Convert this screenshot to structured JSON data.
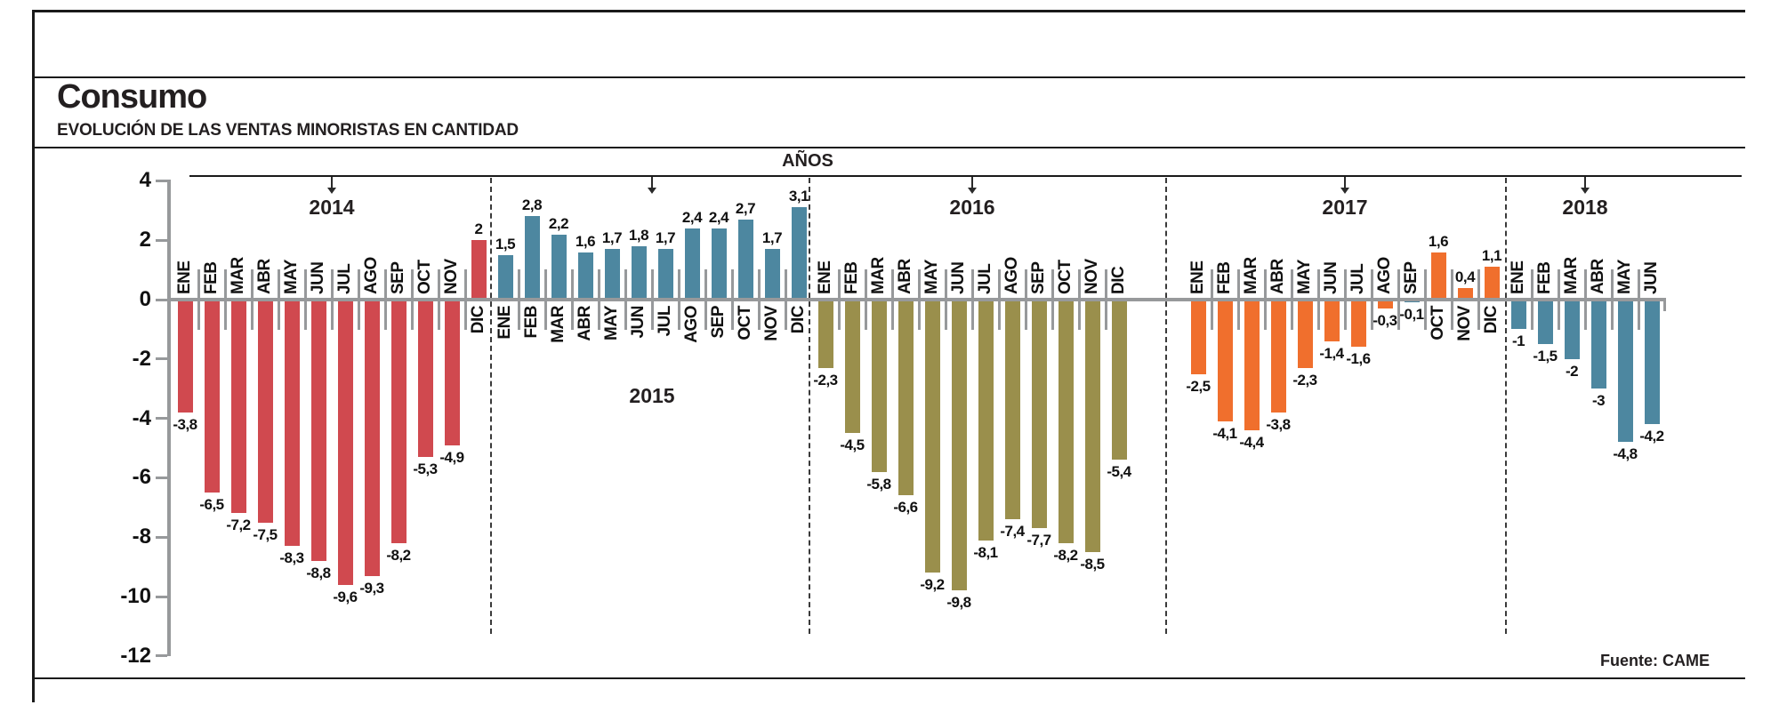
{
  "title": "Consumo",
  "subtitle": "EVOLUCIÓN DE LAS VENTAS MINORISTAS EN CANTIDAD",
  "axis_header": "AÑOS",
  "source": "Fuente: CAME",
  "y_axis": {
    "ticks": [
      4,
      2,
      0,
      -2,
      -4,
      -6,
      -8,
      -10,
      -12
    ],
    "max": 4,
    "min": -12
  },
  "colors": {
    "red_2014": "#d0494f",
    "blue_2015": "#4d87a0",
    "olive_2016": "#9a8f4c",
    "orange_2017": "#f06f2d",
    "blue_2018": "#4d87a0",
    "axis_gray": "#97999b",
    "text": "#231f20"
  },
  "chart_data": {
    "type": "bar",
    "title": "Consumo",
    "subtitle": "Evolución de las ventas minoristas en cantidad",
    "xlabel": "AÑOS",
    "ylabel": "",
    "ylim": [
      -12,
      4
    ],
    "grid": false,
    "legend": "none",
    "years": [
      {
        "label": "2014",
        "color": "#d0494f",
        "year_label_position": "top",
        "months": [
          {
            "m": "ENE",
            "v": -3.8,
            "d": "-3,8"
          },
          {
            "m": "FEB",
            "v": -6.5,
            "d": "-6,5"
          },
          {
            "m": "MAR",
            "v": -7.2,
            "d": "-7,2"
          },
          {
            "m": "ABR",
            "v": -7.5,
            "d": "-7,5"
          },
          {
            "m": "MAY",
            "v": -8.3,
            "d": "-8,3"
          },
          {
            "m": "JUN",
            "v": -8.8,
            "d": "-8,8"
          },
          {
            "m": "JUL",
            "v": -9.6,
            "d": "-9,6"
          },
          {
            "m": "AGO",
            "v": -9.3,
            "d": "-9,3"
          },
          {
            "m": "SEP",
            "v": -8.2,
            "d": "-8,2"
          },
          {
            "m": "OCT",
            "v": -5.3,
            "d": "-5,3"
          },
          {
            "m": "NOV",
            "v": -4.9,
            "d": "-4,9"
          },
          {
            "m": "DIC",
            "v": 2,
            "d": "2"
          }
        ]
      },
      {
        "label": "2015",
        "color": "#4d87a0",
        "year_label_position": "bottom",
        "months": [
          {
            "m": "ENE",
            "v": 1.5,
            "d": "1,5"
          },
          {
            "m": "FEB",
            "v": 2.8,
            "d": "2,8"
          },
          {
            "m": "MAR",
            "v": 2.2,
            "d": "2,2"
          },
          {
            "m": "ABR",
            "v": 1.6,
            "d": "1,6"
          },
          {
            "m": "MAY",
            "v": 1.7,
            "d": "1,7"
          },
          {
            "m": "JUN",
            "v": 1.8,
            "d": "1,8"
          },
          {
            "m": "JUL",
            "v": 1.7,
            "d": "1,7"
          },
          {
            "m": "AGO",
            "v": 2.4,
            "d": "2,4"
          },
          {
            "m": "SEP",
            "v": 2.4,
            "d": "2,4"
          },
          {
            "m": "OCT",
            "v": 2.7,
            "d": "2,7"
          },
          {
            "m": "NOV",
            "v": 1.7,
            "d": "1,7"
          },
          {
            "m": "DIC",
            "v": 3.1,
            "d": "3,1"
          }
        ]
      },
      {
        "label": "2016",
        "color": "#9a8f4c",
        "year_label_position": "top",
        "months": [
          {
            "m": "ENE",
            "v": -2.3,
            "d": "-2,3"
          },
          {
            "m": "FEB",
            "v": -4.5,
            "d": "-4,5"
          },
          {
            "m": "MAR",
            "v": -5.8,
            "d": "-5,8"
          },
          {
            "m": "ABR",
            "v": -6.6,
            "d": "-6,6"
          },
          {
            "m": "MAY",
            "v": -9.2,
            "d": "-9,2"
          },
          {
            "m": "JUN",
            "v": -9.8,
            "d": "-9,8"
          },
          {
            "m": "JUL",
            "v": -8.1,
            "d": "-8,1"
          },
          {
            "m": "AGO",
            "v": -7.4,
            "d": "-7,4"
          },
          {
            "m": "SEP",
            "v": -7.7,
            "d": "-7,7"
          },
          {
            "m": "OCT",
            "v": -8.2,
            "d": "-8,2"
          },
          {
            "m": "NOV",
            "v": -8.5,
            "d": "-8,5"
          },
          {
            "m": "DIC",
            "v": -5.4,
            "d": "-5,4"
          }
        ]
      },
      {
        "label": "2017",
        "color": "#f06f2d",
        "year_label_position": "top",
        "months": [
          {
            "m": "ENE",
            "v": -2.5,
            "d": "-2,5"
          },
          {
            "m": "FEB",
            "v": -4.1,
            "d": "-4,1"
          },
          {
            "m": "MAR",
            "v": -4.4,
            "d": "-4,4"
          },
          {
            "m": "ABR",
            "v": -3.8,
            "d": "-3,8"
          },
          {
            "m": "MAY",
            "v": -2.3,
            "d": "-2,3"
          },
          {
            "m": "JUN",
            "v": -1.4,
            "d": "-1,4"
          },
          {
            "m": "JUL",
            "v": -1.6,
            "d": "-1,6"
          },
          {
            "m": "AGO",
            "v": -0.3,
            "d": "-0,3"
          },
          {
            "m": "SEP",
            "v": -0.1,
            "d": "-0,1",
            "color": "#4d87a0"
          },
          {
            "m": "OCT",
            "v": 1.6,
            "d": "1,6"
          },
          {
            "m": "NOV",
            "v": 0.4,
            "d": "0,4"
          },
          {
            "m": "DIC",
            "v": 1.1,
            "d": "1,1"
          }
        ]
      },
      {
        "label": "2018",
        "color": "#4d87a0",
        "year_label_position": "top",
        "months": [
          {
            "m": "ENE",
            "v": -1,
            "d": "-1"
          },
          {
            "m": "FEB",
            "v": -1.5,
            "d": "-1,5"
          },
          {
            "m": "MAR",
            "v": -2,
            "d": "-2"
          },
          {
            "m": "ABR",
            "v": -3,
            "d": "-3"
          },
          {
            "m": "MAY",
            "v": -4.8,
            "d": "-4,8"
          },
          {
            "m": "JUN",
            "v": -4.2,
            "d": "-4,2"
          }
        ]
      }
    ]
  }
}
